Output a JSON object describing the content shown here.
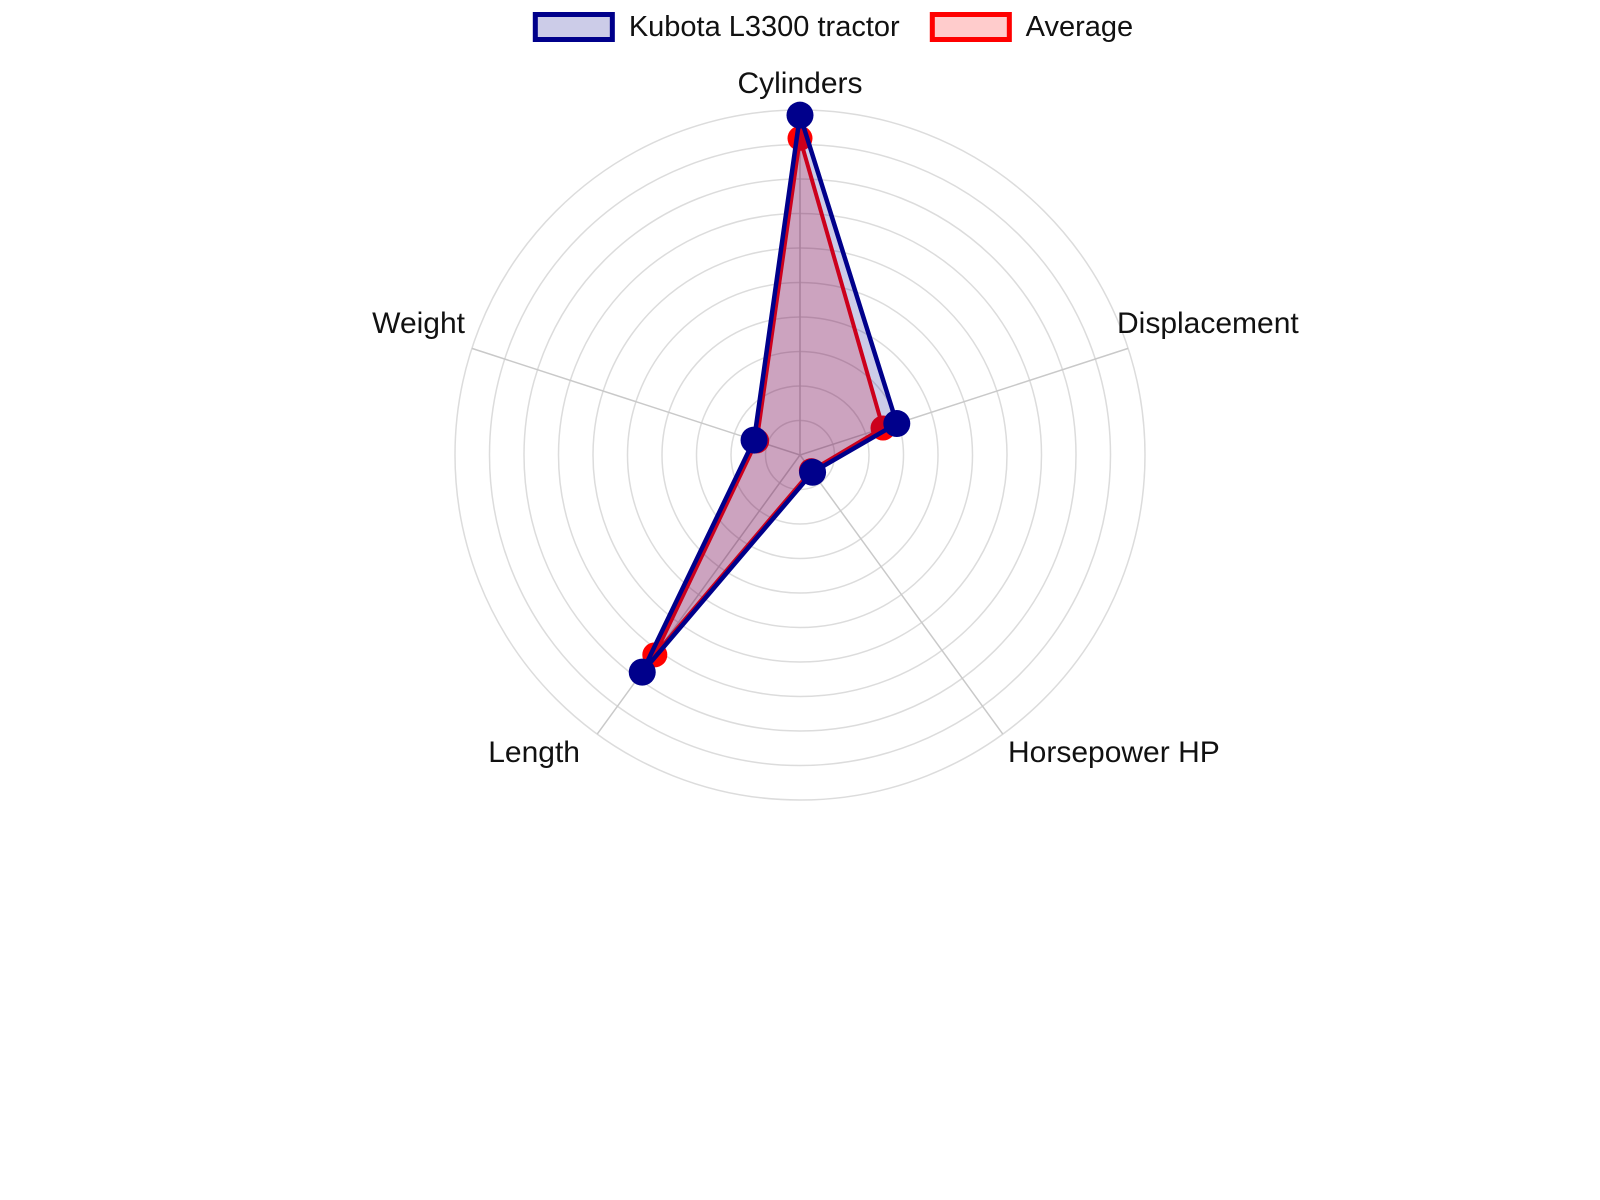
{
  "figure": {
    "background": "#ffffff",
    "grid_color": "#dcdcdc",
    "spoke_color": "#c9c9c9",
    "text_color": "#111111"
  },
  "legend": {
    "items": [
      {
        "label": "Kubota L3300 tractor",
        "stroke": "#00008B",
        "fill": "#CCCCE8"
      },
      {
        "label": "Average",
        "stroke": "#FF0000",
        "fill": "#FFCCCC"
      }
    ]
  },
  "chart_data": {
    "type": "radar",
    "categories": [
      "Cylinders",
      "Displacement",
      "Horsepower HP",
      "Length",
      "Weight"
    ],
    "series": [
      {
        "name": "Kubota L3300 tractor",
        "values": [
          0.985,
          0.295,
          0.062,
          0.778,
          0.14
        ],
        "stroke": "#00008B",
        "fill": "rgba(0,0,139,0.2)",
        "marker_radius": 13.5,
        "line_width": 4.5
      },
      {
        "name": "Average",
        "values": [
          0.918,
          0.253,
          0.056,
          0.716,
          0.132
        ],
        "stroke": "#FF0000",
        "fill": "rgba(255,0,0,0.2)",
        "marker_radius": 12.5,
        "line_width": 4
      }
    ],
    "rmin": 0,
    "rmax": 1,
    "rings": 10,
    "grid": true,
    "grid_shape": "circle",
    "start_angle_deg": 90,
    "direction": "clockwise",
    "radial_tick_labels_visible": false,
    "legend_position": "top-center",
    "draw_order": [
      "Average",
      "Kubota L3300 tractor"
    ]
  }
}
